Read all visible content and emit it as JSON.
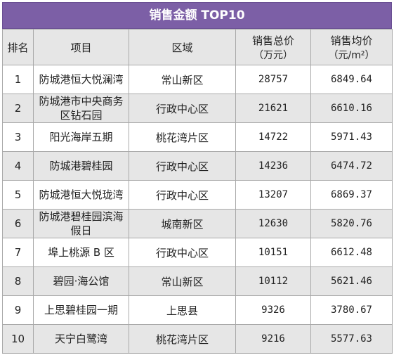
{
  "title": "销售金额 TOP10",
  "headers": {
    "rank": "排名",
    "project": "项目",
    "region": "区域",
    "total_line1": "销售总价",
    "total_line2": "（万元）",
    "avg_line1": "销售均价",
    "avg_line2": "（元/m²）"
  },
  "rows": [
    {
      "rank": "1",
      "project": "防城港恒大悦澜湾",
      "region": "常山新区",
      "total": "28757",
      "avg": "6849.64"
    },
    {
      "rank": "2",
      "project": "防城港市中央商务区钻石园",
      "region": "行政中心区",
      "total": "21621",
      "avg": "6610.16"
    },
    {
      "rank": "3",
      "project": "阳光海岸五期",
      "region": "桃花湾片区",
      "total": "14722",
      "avg": "5971.43"
    },
    {
      "rank": "4",
      "project": "防城港碧桂园",
      "region": "行政中心区",
      "total": "14236",
      "avg": "6474.72"
    },
    {
      "rank": "5",
      "project": "防城港恒大悦珑湾",
      "region": "行政中心区",
      "total": "13207",
      "avg": "6869.37"
    },
    {
      "rank": "6",
      "project": "防城港碧桂园滨海假日",
      "region": "城南新区",
      "total": "12630",
      "avg": "5820.76"
    },
    {
      "rank": "7",
      "project": "埠上桃源 B 区",
      "region": "行政中心区",
      "total": "10151",
      "avg": "6612.48"
    },
    {
      "rank": "8",
      "project": "碧园·海公馆",
      "region": "常山新区",
      "total": "10112",
      "avg": "5621.46"
    },
    {
      "rank": "9",
      "project": "上思碧桂园一期",
      "region": "上思县",
      "total": "9326",
      "avg": "3780.67"
    },
    {
      "rank": "10",
      "project": "天宁白鹭湾",
      "region": "桃花湾片区",
      "total": "9216",
      "avg": "5577.63"
    }
  ],
  "colors": {
    "title_bg": "#7c5fa6",
    "stripe": "#e6e6e6"
  }
}
